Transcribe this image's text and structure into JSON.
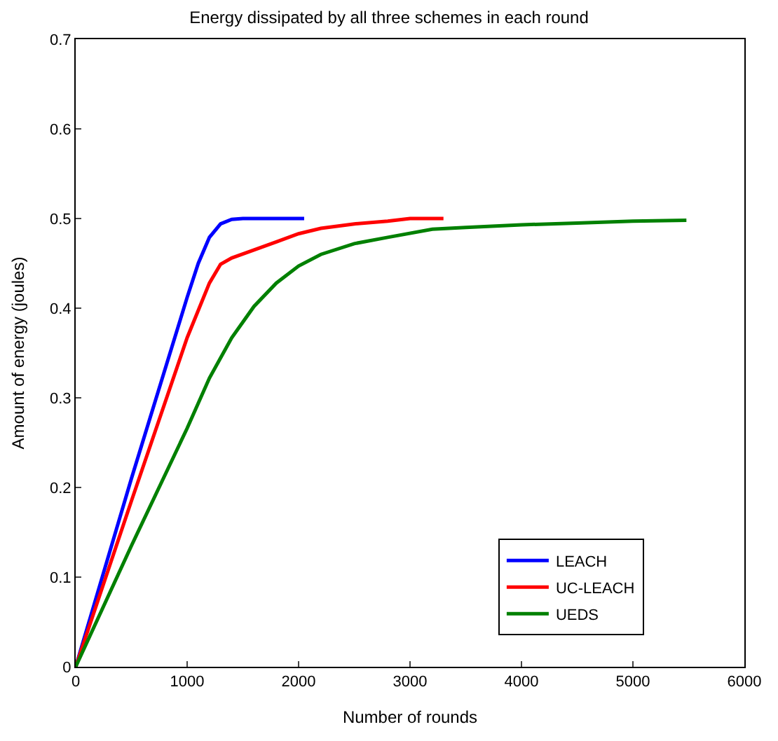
{
  "chart_data": {
    "type": "line",
    "title": "Energy dissipated by all three schemes in each round",
    "xlabel": "Number of rounds",
    "ylabel": "Amount of energy (joules)",
    "xlim": [
      0,
      6000
    ],
    "xticks": [
      0,
      1000,
      2000,
      3000,
      4000,
      5000,
      6000
    ],
    "ylim": [
      0,
      0.7
    ],
    "yticks": [
      0,
      0.1,
      0.2,
      0.3,
      0.4,
      0.5,
      0.6,
      0.7
    ],
    "legend": "bottom right",
    "marker": "none",
    "line_style": "solid",
    "series": [
      {
        "name": "LEACH",
        "color": "#0000ff",
        "x": [
          0,
          500,
          1000,
          1100,
          1200,
          1300,
          1400,
          1500,
          2050
        ],
        "values": [
          0,
          0.21,
          0.412,
          0.45,
          0.479,
          0.494,
          0.499,
          0.5,
          0.5
        ]
      },
      {
        "name": "UC-LEACH",
        "color": "#ff0000",
        "x": [
          0,
          500,
          1000,
          1200,
          1300,
          1400,
          1600,
          1800,
          2000,
          2200,
          2500,
          2800,
          3000,
          3300
        ],
        "values": [
          0,
          0.185,
          0.367,
          0.428,
          0.449,
          0.456,
          0.465,
          0.474,
          0.483,
          0.489,
          0.494,
          0.497,
          0.5,
          0.5
        ]
      },
      {
        "name": "UEDS",
        "color": "#008000",
        "x": [
          0,
          500,
          1000,
          1200,
          1400,
          1600,
          1800,
          2000,
          2200,
          2500,
          2800,
          3200,
          3500,
          4000,
          4500,
          5000,
          5480
        ],
        "values": [
          0,
          0.135,
          0.266,
          0.322,
          0.367,
          0.402,
          0.428,
          0.447,
          0.46,
          0.472,
          0.479,
          0.488,
          0.49,
          0.493,
          0.495,
          0.497,
          0.498
        ]
      }
    ]
  }
}
